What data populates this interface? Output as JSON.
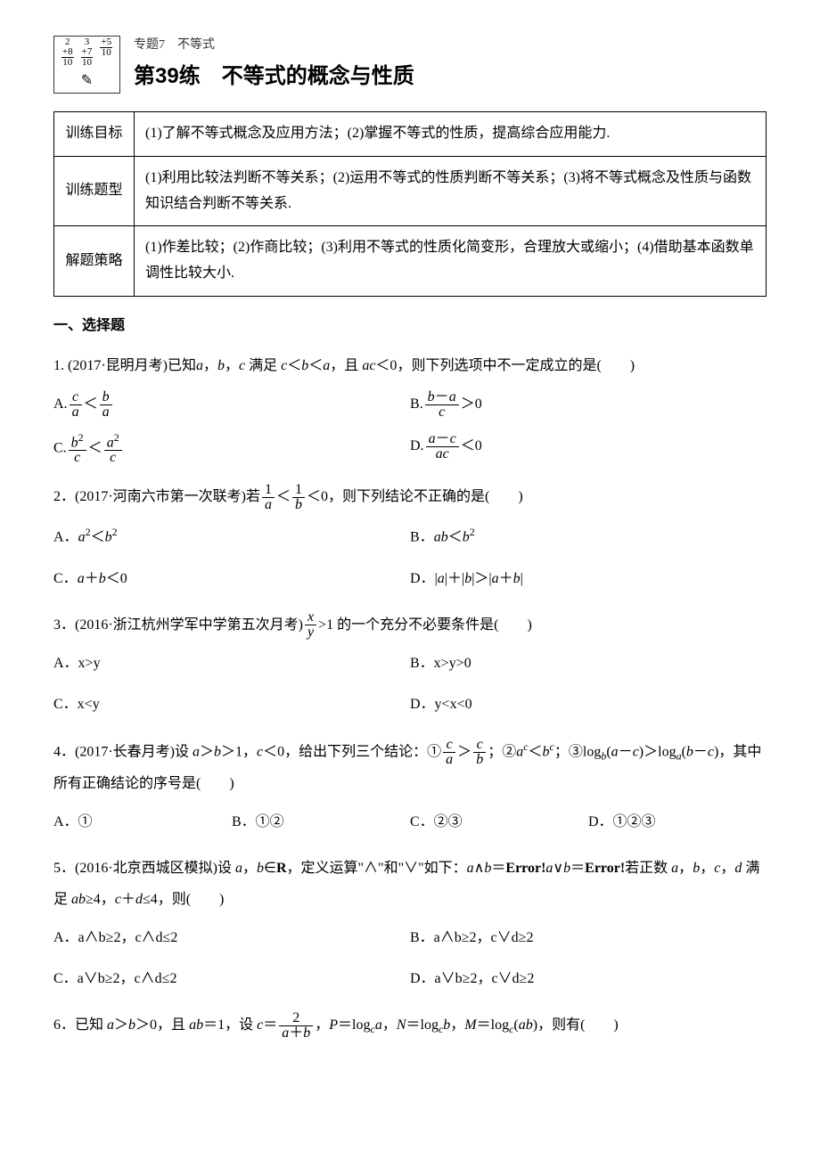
{
  "header": {
    "subject_line": "专题7　不等式",
    "lesson_title": "第39练　不等式的概念与性质",
    "icon": {
      "frac_tops": [
        "2",
        "3",
        ""
      ],
      "frac_nums": [
        "+8",
        "+7",
        "+5"
      ],
      "frac_dens": [
        "10",
        "10",
        "10"
      ]
    }
  },
  "table": {
    "rows": [
      {
        "label": "训练目标",
        "content": "(1)了解不等式概念及应用方法；(2)掌握不等式的性质，提高综合应用能力."
      },
      {
        "label": "训练题型",
        "content": "(1)利用比较法判断不等关系；(2)运用不等式的性质判断不等关系；(3)将不等式概念及性质与函数知识结合判断不等关系."
      },
      {
        "label": "解题策略",
        "content": "(1)作差比较；(2)作商比较；(3)利用不等式的性质化简变形，合理放大或缩小；(4)借助基本函数单调性比较大小."
      }
    ]
  },
  "section1_heading": "一、选择题",
  "q1": {
    "stem_pre": "1. (2017·昆明月考)已知",
    "stem_mid": "满足",
    "stem_mid2": "，且",
    "stem_post": "，则下列选项中不一定成立的是(　　)"
  },
  "q2": {
    "stem_pre": "2．(2017·河南六市第一次联考)若",
    "stem_post": "，则下列结论不正确的是(　　)",
    "optA_pre": "A．",
    "optB_pre": "B．",
    "optC_pre": "C．",
    "optD_pre": "D．"
  },
  "q3": {
    "stem_pre": "3．(2016·浙江杭州学军中学第五次月考)",
    "stem_post": " 的一个充分不必要条件是(　　)",
    "optA": "A．x>y",
    "optB": "B．x>y>0",
    "optC": "C．x<y",
    "optD": "D．y<x<0"
  },
  "q4": {
    "stem_pre": "4．(2017·长春月考)设",
    "stem_mid": "，给出下列三个结论：①",
    "stem_mid2": "；②",
    "stem_mid3": "；③",
    "stem_post": "，其中所有正确结论的序号是(　　)",
    "optA": "A．①",
    "optB": "B．①②",
    "optC": "C．②③",
    "optD": "D．①②③"
  },
  "q5": {
    "stem_pre": "5．(2016·北京西城区模拟)设",
    "stem_mid": "，定义运算\"∧\"和\"∨\"如下：",
    "stem_error1": "Error!",
    "stem_error2": "Error!",
    "stem_mid2": "若正数",
    "stem_mid3": "满足",
    "stem_post": "，则(　　)",
    "optA": "A．a∧b≥2，c∧d≤2",
    "optB": "B．a∧b≥2，c∨d≥2",
    "optC": "C．a∨b≥2，c∧d≤2",
    "optD": "D．a∨b≥2，c∨d≥2"
  },
  "q6": {
    "stem_pre": "6．已知",
    "stem_mid": "，且",
    "stem_mid2": "，设",
    "stem_mid3": "，",
    "stem_post": "，则有(　　)"
  }
}
